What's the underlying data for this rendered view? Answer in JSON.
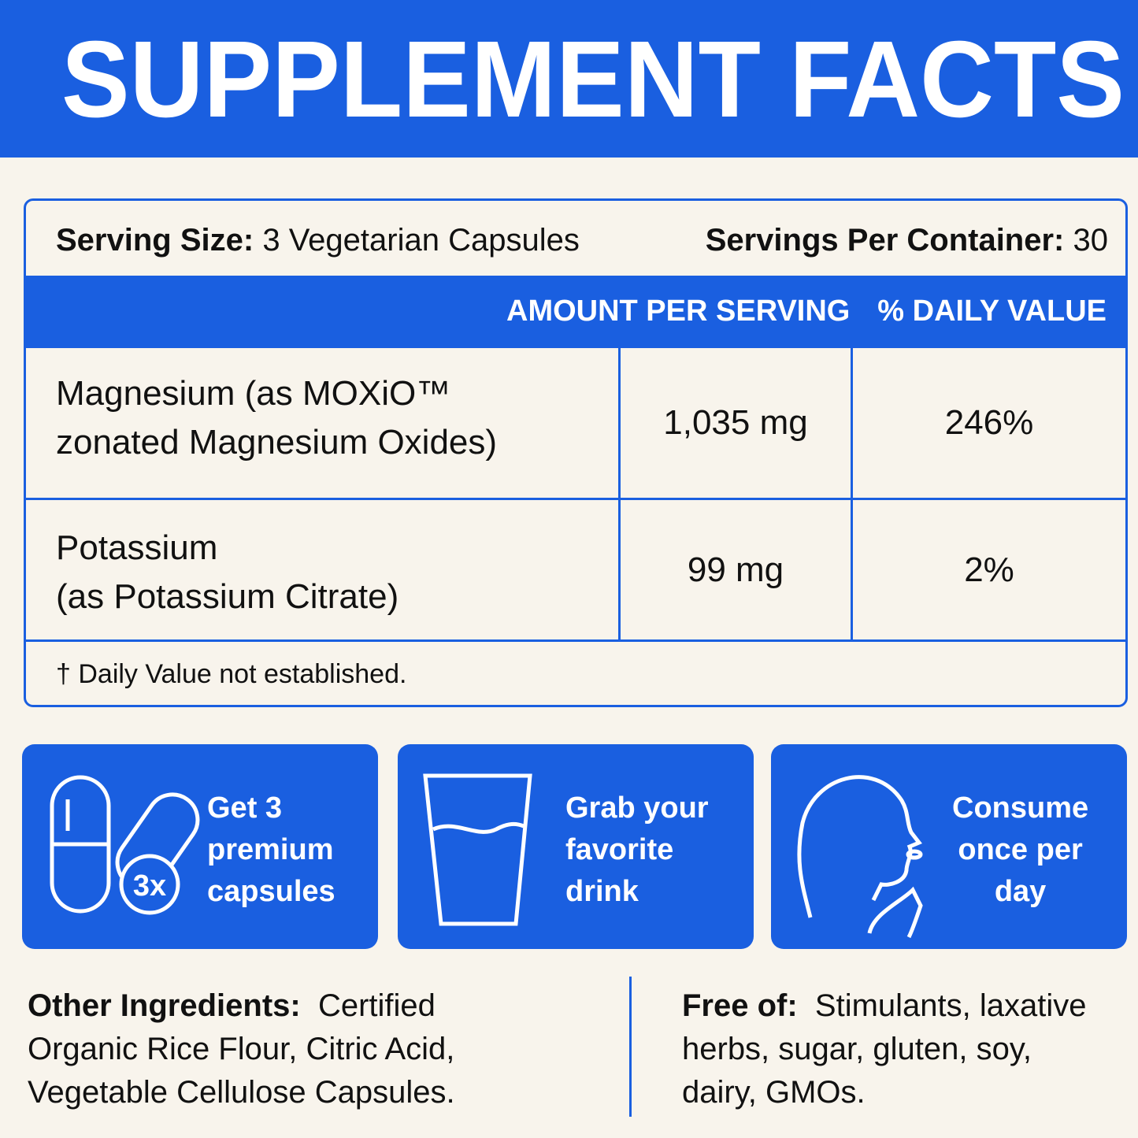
{
  "header": {
    "title": "SUPPLEMENT FACTS"
  },
  "serving": {
    "size_label": "Serving Size:",
    "size_value": "3 Vegetarian Capsules",
    "per_container_label": "Servings Per Container:",
    "per_container_value": "30"
  },
  "table": {
    "columns": [
      "AMOUNT PER SERVING",
      "% DAILY VALUE"
    ],
    "rows": [
      {
        "name": [
          "Magnesium (as MOXiO™",
          "zonated Magnesium Oxides)"
        ],
        "amount": "1,035 mg",
        "daily_value": "246%"
      },
      {
        "name": [
          "Potassium",
          "(as Potassium Citrate)"
        ],
        "amount": "99 mg",
        "daily_value": "2%"
      }
    ],
    "footnote": "† Daily Value not established."
  },
  "steps": [
    {
      "badge": "3x",
      "text": [
        "Get 3",
        "premium",
        "capsules"
      ]
    },
    {
      "text": [
        "Grab your",
        "favorite",
        "drink"
      ]
    },
    {
      "text": [
        "Consume",
        "once per",
        "day"
      ]
    }
  ],
  "other_ingredients": {
    "label": "Other Ingredients:",
    "lines": [
      "Certified",
      "Organic Rice Flour, Citric Acid,",
      "Vegetable Cellulose Capsules."
    ]
  },
  "free_of": {
    "label": "Free of:",
    "lines": [
      "Stimulants, laxative",
      "herbs, sugar, gluten, soy,",
      "dairy, GMOs."
    ]
  }
}
